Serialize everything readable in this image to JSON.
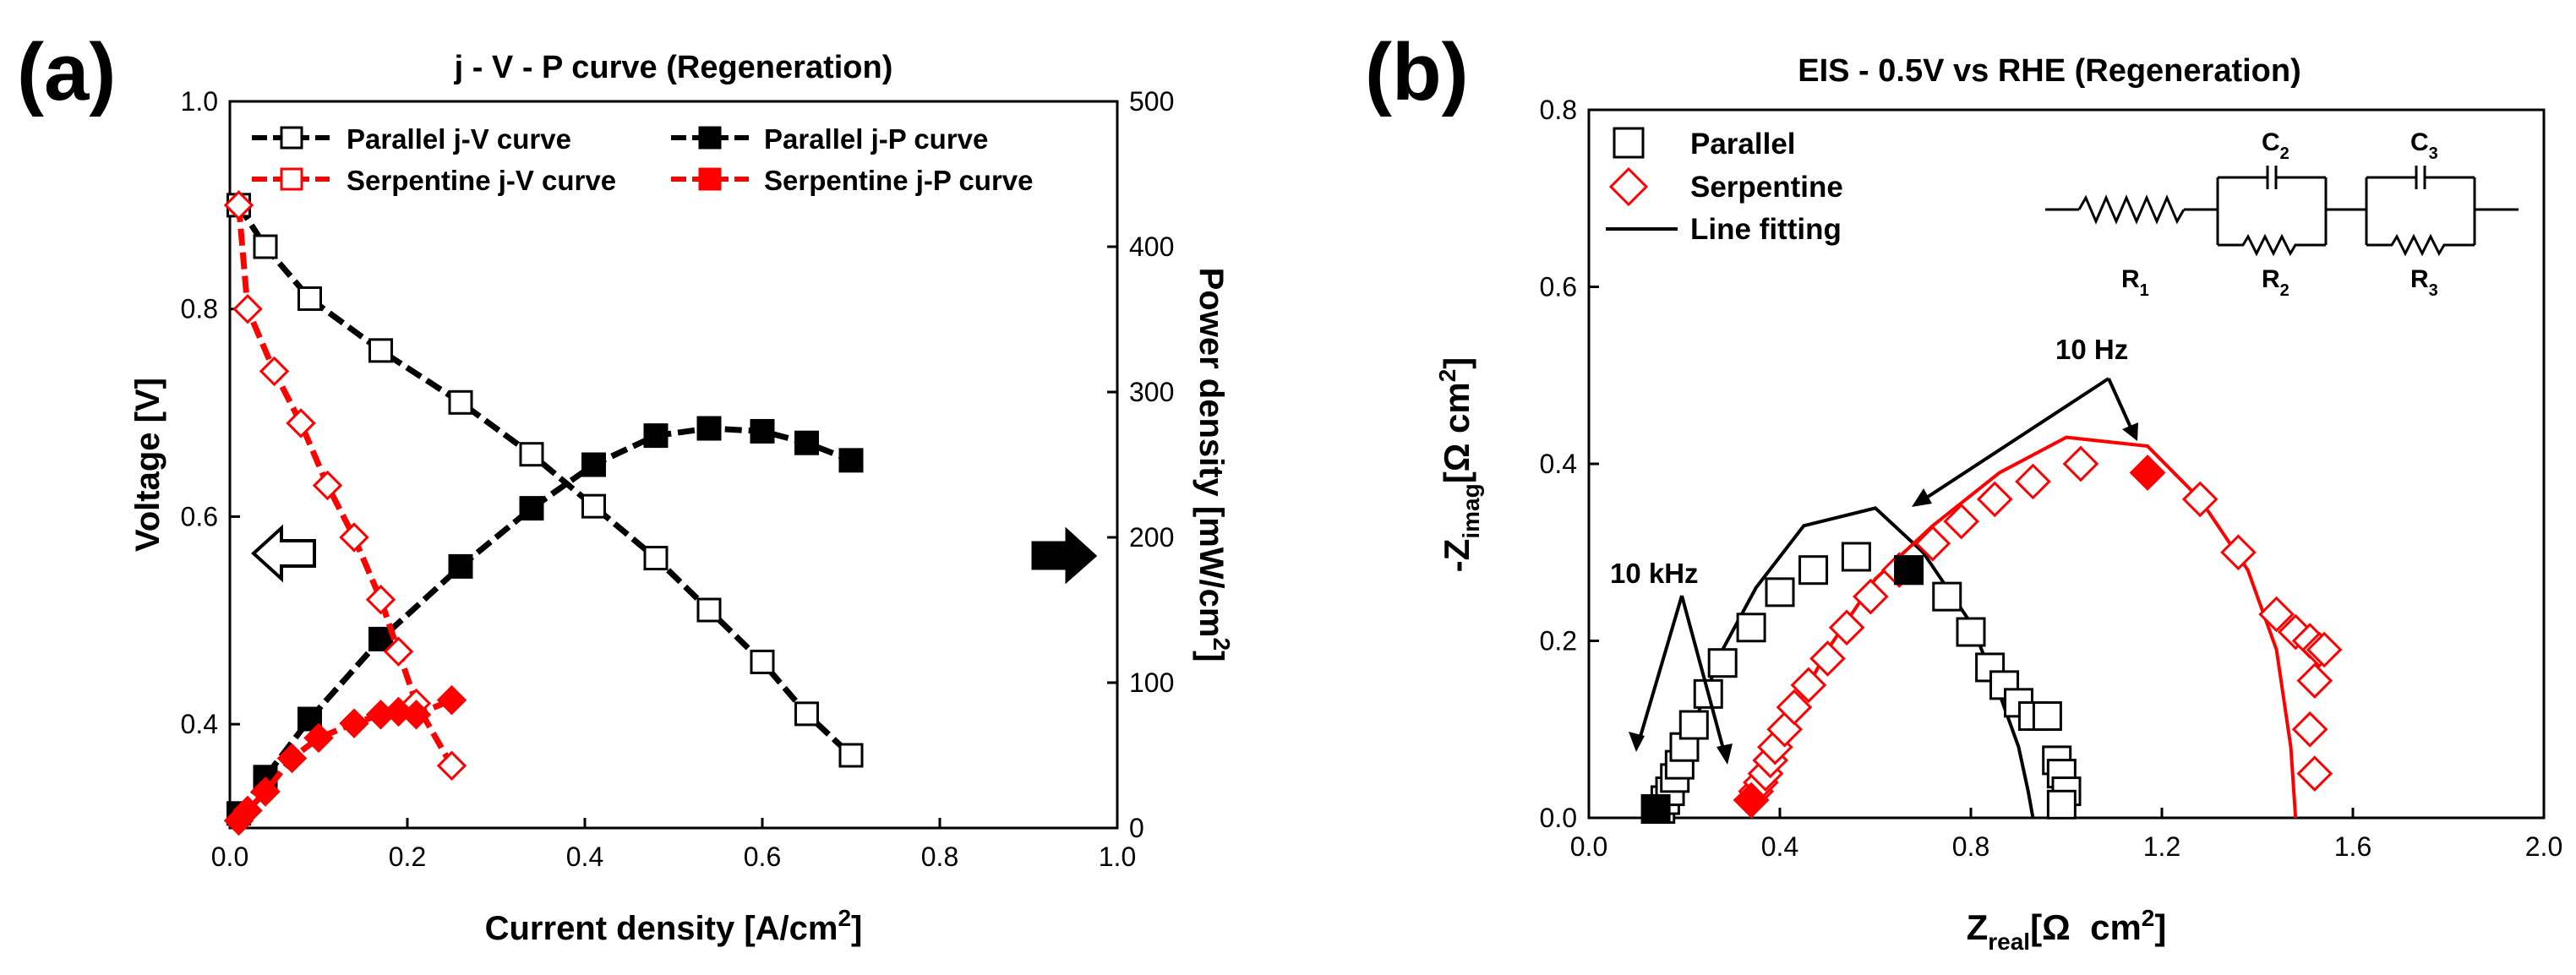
{
  "panels": {
    "a": {
      "label": "(a)"
    },
    "b": {
      "label": "(b)"
    }
  },
  "colors": {
    "black": "#000000",
    "red": "#ff0000"
  },
  "chart_data": [
    {
      "type": "line",
      "title": "j - V - P curve (Regeneration)",
      "xlabel": "Current density [A/cm",
      "xlabel_sup": "2",
      "xlabel_end": "]",
      "ylabel_left": "Voltage [V]",
      "ylabel_right": "Power density [mW/cm",
      "ylabel_right_sup": "2",
      "ylabel_right_end": "]",
      "xlim": [
        0,
        1.0
      ],
      "ylim_left": [
        0.3,
        1.0
      ],
      "ylim_right": [
        0,
        500
      ],
      "xticks": [
        "0.0",
        "0.2",
        "0.4",
        "0.6",
        "0.8",
        "1.0"
      ],
      "yticks_left": [
        "0.4",
        "0.6",
        "0.8",
        "1.0"
      ],
      "yticks_right": [
        "0",
        "100",
        "200",
        "300",
        "400",
        "500"
      ],
      "legend": [
        "Parallel j-V curve",
        "Parallel j-P curve",
        "Serpentine j-V curve",
        "Serpentine j-P curve"
      ],
      "series": [
        {
          "name": "Parallel j-V curve",
          "axis": "left",
          "color": "#000000",
          "marker": "open-square",
          "dashed": true,
          "x": [
            0.01,
            0.04,
            0.09,
            0.17,
            0.26,
            0.34,
            0.41,
            0.48,
            0.54,
            0.6,
            0.65,
            0.7
          ],
          "y": [
            0.9,
            0.86,
            0.81,
            0.76,
            0.71,
            0.66,
            0.61,
            0.56,
            0.51,
            0.46,
            0.41,
            0.37
          ]
        },
        {
          "name": "Parallel j-P curve",
          "axis": "right",
          "color": "#000000",
          "marker": "filled-square",
          "dashed": true,
          "x": [
            0.01,
            0.04,
            0.09,
            0.17,
            0.26,
            0.34,
            0.41,
            0.48,
            0.54,
            0.6,
            0.65,
            0.7
          ],
          "y": [
            10,
            35,
            75,
            130,
            180,
            220,
            250,
            270,
            275,
            273,
            265,
            253
          ]
        },
        {
          "name": "Serpentine j-V curve",
          "axis": "left",
          "color": "#ff0000",
          "marker": "open-diamond",
          "dashed": true,
          "x": [
            0.01,
            0.02,
            0.05,
            0.08,
            0.11,
            0.14,
            0.17,
            0.19,
            0.21,
            0.25
          ],
          "y": [
            0.9,
            0.8,
            0.74,
            0.69,
            0.63,
            0.58,
            0.52,
            0.47,
            0.42,
            0.36
          ]
        },
        {
          "name": "Serpentine j-P curve",
          "axis": "right",
          "color": "#ff0000",
          "marker": "filled-diamond",
          "dashed": true,
          "x": [
            0.01,
            0.02,
            0.04,
            0.07,
            0.1,
            0.14,
            0.17,
            0.19,
            0.21,
            0.25
          ],
          "y": [
            5,
            12,
            25,
            48,
            62,
            72,
            78,
            80,
            78,
            88
          ]
        }
      ],
      "annotations": [
        {
          "type": "arrow",
          "style": "open",
          "direction": "left",
          "meaning": "left axis"
        },
        {
          "type": "arrow",
          "style": "filled",
          "direction": "right",
          "meaning": "right axis"
        }
      ]
    },
    {
      "type": "scatter",
      "title": "EIS - 0.5V vs RHE (Regeneration)",
      "xlabel": "Z",
      "xlabel_sub": "real",
      "xlabel_end": "[Ω  cm",
      "xlabel_sup": "2",
      "xlabel_close": "]",
      "ylabel": "-Z",
      "ylabel_sub": "imag",
      "ylabel_end": "[Ω cm",
      "ylabel_sup": "2",
      "ylabel_close": "]",
      "xlim": [
        0,
        2.0
      ],
      "ylim": [
        0,
        0.8
      ],
      "xticks": [
        "0.0",
        "0.4",
        "0.8",
        "1.2",
        "1.6",
        "2.0"
      ],
      "yticks": [
        "0.0",
        "0.2",
        "0.4",
        "0.6",
        "0.8"
      ],
      "legend": [
        "Parallel",
        "Serpentine",
        "Line fitting"
      ],
      "circuit_labels": {
        "r1": "R",
        "r1_sub": "1",
        "r2": "R",
        "r2_sub": "2",
        "r3": "R",
        "r3_sub": "3",
        "c2": "C",
        "c2_sub": "2",
        "c3": "C",
        "c3_sub": "3"
      },
      "annotations": {
        "freq_high": "10 kHz",
        "freq_low": "10 Hz"
      },
      "series": [
        {
          "name": "Parallel",
          "color": "#000000",
          "marker": "open-square",
          "x": [
            0.15,
            0.16,
            0.17,
            0.18,
            0.19,
            0.2,
            0.22,
            0.25,
            0.28,
            0.34,
            0.4,
            0.47,
            0.56,
            0.67,
            0.75,
            0.8,
            0.84,
            0.87,
            0.9,
            0.93,
            0.96,
            0.98,
            0.99,
            1.0,
            0.99
          ],
          "y": [
            0.01,
            0.02,
            0.03,
            0.045,
            0.06,
            0.08,
            0.105,
            0.14,
            0.175,
            0.215,
            0.255,
            0.28,
            0.295,
            0.28,
            0.25,
            0.21,
            0.17,
            0.15,
            0.13,
            0.115,
            0.115,
            0.065,
            0.05,
            0.03,
            0.015
          ]
        },
        {
          "name": "Serpentine",
          "color": "#ff0000",
          "marker": "open-diamond",
          "x": [
            0.34,
            0.35,
            0.36,
            0.37,
            0.38,
            0.39,
            0.41,
            0.43,
            0.46,
            0.5,
            0.54,
            0.59,
            0.65,
            0.72,
            0.78,
            0.85,
            0.93,
            1.03,
            1.17,
            1.28,
            1.36,
            1.44,
            1.48,
            1.51,
            1.53,
            1.54,
            1.52,
            1.51,
            1.52
          ],
          "y": [
            0.02,
            0.03,
            0.04,
            0.05,
            0.065,
            0.08,
            0.1,
            0.125,
            0.15,
            0.18,
            0.215,
            0.25,
            0.28,
            0.31,
            0.335,
            0.36,
            0.38,
            0.4,
            0.39,
            0.36,
            0.3,
            0.23,
            0.21,
            0.2,
            0.19,
            0.19,
            0.155,
            0.1,
            0.05
          ]
        }
      ],
      "highlights": [
        {
          "series": "Parallel 10 kHz",
          "color": "#000000",
          "shape": "filled-square",
          "x": 0.14,
          "y": 0.01
        },
        {
          "series": "Parallel 10 Hz",
          "color": "#000000",
          "shape": "filled-square",
          "x": 0.67,
          "y": 0.28
        },
        {
          "series": "Serpentine 10 kHz",
          "color": "#ff0000",
          "shape": "filled-diamond",
          "x": 0.34,
          "y": 0.02
        },
        {
          "series": "Serpentine 10 Hz",
          "color": "#ff0000",
          "shape": "filled-diamond",
          "x": 1.17,
          "y": 0.39
        }
      ],
      "fits": [
        {
          "name": "Parallel fit",
          "color": "#000000",
          "x": [
            0.15,
            0.18,
            0.23,
            0.28,
            0.35,
            0.45,
            0.6,
            0.7,
            0.8,
            0.86,
            0.9,
            0.92,
            0.93
          ],
          "y": [
            0.0,
            0.05,
            0.12,
            0.19,
            0.26,
            0.33,
            0.35,
            0.3,
            0.22,
            0.14,
            0.08,
            0.03,
            0.0
          ]
        },
        {
          "name": "Serpentine fit",
          "color": "#ff0000",
          "x": [
            0.34,
            0.37,
            0.42,
            0.5,
            0.6,
            0.72,
            0.86,
            1.0,
            1.17,
            1.28,
            1.38,
            1.44,
            1.47,
            1.48
          ],
          "y": [
            0.0,
            0.05,
            0.11,
            0.19,
            0.27,
            0.33,
            0.39,
            0.43,
            0.42,
            0.36,
            0.28,
            0.19,
            0.08,
            0.0
          ]
        }
      ]
    }
  ]
}
